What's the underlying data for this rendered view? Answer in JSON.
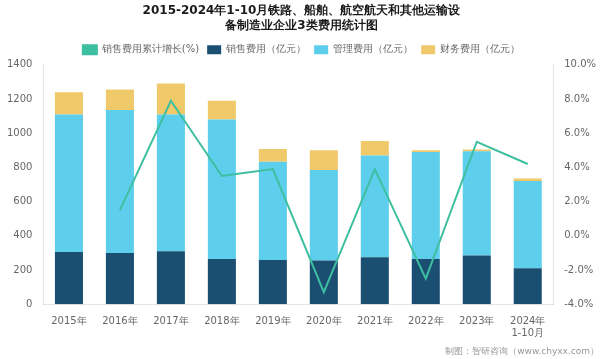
{
  "chart_data": {
    "type": "bar",
    "title": [
      "2015-2024年1-10月铁路、船舶、航空航天和其他运输设",
      "备制造业企业3类费用统计图"
    ],
    "annotations": [
      "制图：智研咨询（www.chyxx.com）"
    ],
    "categories": [
      "2015年",
      "2016年",
      "2017年",
      "2018年",
      "2019年",
      "2020年",
      "2021年",
      "2022年",
      "2023年",
      "2024年\n1-10月"
    ],
    "series": [
      {
        "name": "销售费用（亿元）",
        "type": "bar",
        "color": "#1b4f72",
        "values": [
          305,
          300,
          310,
          265,
          258,
          255,
          275,
          265,
          285,
          210
        ]
      },
      {
        "name": "管理费用（亿元）",
        "type": "bar",
        "color": "#5dceec",
        "values": [
          805,
          835,
          800,
          815,
          575,
          530,
          595,
          625,
          610,
          510
        ]
      },
      {
        "name": "财务费用（亿元）",
        "type": "bar",
        "color": "#f0c96a",
        "values": [
          130,
          120,
          180,
          110,
          75,
          115,
          85,
          10,
          10,
          15
        ]
      },
      {
        "name": "销售费用累计增长(%)",
        "type": "line",
        "axis": "y2",
        "color": "#3dbfa0",
        "values": [
          null,
          1.5,
          7.9,
          3.5,
          3.9,
          -3.3,
          3.9,
          -2.5,
          5.5,
          4.2
        ]
      }
    ],
    "stacked": true,
    "ylim": [
      0,
      1400
    ],
    "yticks": [
      0,
      200,
      400,
      600,
      800,
      1000,
      1200,
      1400
    ],
    "y2lim": [
      -4.0,
      10.0
    ],
    "y2ticks": [
      {
        "value": -4.0,
        "label": "-4.0%"
      },
      {
        "value": -2.0,
        "label": "-2.0%"
      },
      {
        "value": 0.0,
        "label": "0.0%"
      },
      {
        "value": 2.0,
        "label": "2.0%"
      },
      {
        "value": 4.0,
        "label": "4.0%"
      },
      {
        "value": 6.0,
        "label": "6.0%"
      },
      {
        "value": 8.0,
        "label": "8.0%"
      },
      {
        "value": 10.0,
        "label": "10.0%"
      }
    ],
    "grid": false,
    "legend": "top"
  }
}
